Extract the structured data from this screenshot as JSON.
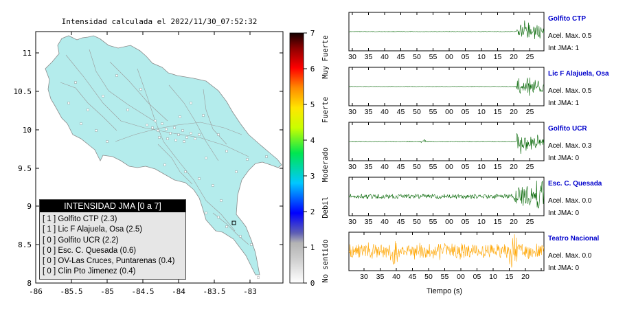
{
  "map": {
    "title": "Intensidad calculada el 2022/11/30_07:52:32",
    "lat_ticks": [
      "11",
      "10.5",
      "10",
      "9.5",
      "9",
      "8.5",
      "8"
    ],
    "lon_ticks": [
      "-86",
      "-85.5",
      "-85",
      "-84.5",
      "-84",
      "-83.5",
      "-83"
    ],
    "land_color": "#b4ecec"
  },
  "colorbar": {
    "ticks": [
      "7",
      "6",
      "5",
      "4",
      "3",
      "2",
      "1",
      "0"
    ],
    "labels": [
      "Muy Fuerte",
      "Fuerte",
      "Moderado",
      "Debil",
      "No sentido"
    ]
  },
  "legend": {
    "title": "INTENSIDAD JMA [0 a 7]",
    "rows": [
      "[ 1 ]  Golfito CTP (2.3)",
      "[ 1 ]  Lic F Alajuela, Osa (2.5)",
      "[ 0 ]  Golfito UCR (2.2)",
      "[ 0 ]  Esc. C. Quesada (0.6)",
      "[ 0 ]  OV-Las Cruces, Puntarenas (0.4)",
      "[ 0 ]  Clin Pto Jimenez (0.4)"
    ]
  },
  "waveforms": {
    "time_ticks": [
      "30",
      "35",
      "40",
      "45",
      "50",
      "55",
      "00",
      "05",
      "10",
      "15",
      "20",
      "25"
    ],
    "x_label": "Tiempo (s)",
    "stations": [
      {
        "name": "Golfito CTP",
        "acel": "Acel. Max. 0.5",
        "jma": "Int JMA: 1",
        "color": "#006400"
      },
      {
        "name": "Lic F Alajuela, Osa",
        "acel": "Acel. Max. 0.5",
        "jma": "Int JMA: 1",
        "color": "#006400"
      },
      {
        "name": "Golfito UCR",
        "acel": "Acel. Max. 0.3",
        "jma": "Int JMA: 0",
        "color": "#006400"
      },
      {
        "name": "Esc. C. Quesada",
        "acel": "Acel. Max. 0.0",
        "jma": "Int JMA: 0",
        "color": "#006400"
      },
      {
        "name": "Teatro Nacional",
        "acel": "Acel. Max. 0.0",
        "jma": "Int JMA: 0",
        "color": "#ffa500"
      }
    ]
  }
}
